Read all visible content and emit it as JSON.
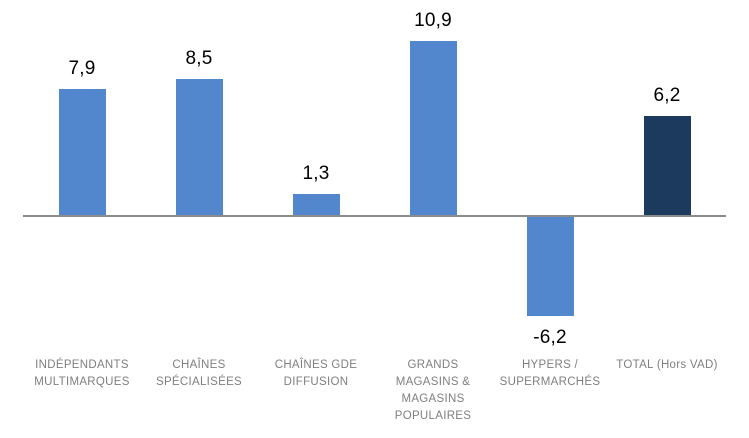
{
  "chart_data": {
    "type": "bar",
    "title": "",
    "xlabel": "",
    "ylabel": "",
    "categories": [
      "INDÉPENDANTS MULTIMARQUES",
      "CHAÎNES SPÉCIALISÉES",
      "CHAÎNES GDE DIFFUSION",
      "GRANDS MAGASINS & MAGASINS POPULAIRES",
      "HYPERS / SUPERMARCHÉS",
      "TOTAL (Hors VAD)"
    ],
    "category_lines": [
      [
        "INDÉPENDANTS",
        "MULTIMARQUES"
      ],
      [
        "CHAÎNES",
        "SPÉCIALISÉES"
      ],
      [
        "CHAÎNES GDE",
        "DIFFUSION"
      ],
      [
        "GRANDS",
        "MAGASINS &",
        "MAGASINS",
        "POPULAIRES"
      ],
      [
        "HYPERS /",
        "SUPERMARCHÉS"
      ],
      [
        "TOTAL (Hors VAD)"
      ]
    ],
    "values": [
      7.9,
      8.5,
      1.3,
      10.9,
      -6.2,
      6.2
    ],
    "value_labels": [
      "7,9",
      "8,5",
      "1,3",
      "10,9",
      "-6,2",
      "6,2"
    ],
    "bar_colors": [
      "#5287CE",
      "#5287CE",
      "#5287CE",
      "#5287CE",
      "#5287CE",
      "#1C3A5E"
    ],
    "colors": {
      "bar_default": "#5287CE",
      "bar_total": "#1C3A5E",
      "axis_line": "#8C8C8C",
      "value_label": "#000000",
      "category_label": "#7F7F7F",
      "background": "#FFFFFF"
    },
    "ylim": [
      -8,
      12
    ],
    "grid": false,
    "legend": false,
    "value_labels_shown": true,
    "baseline": 0
  }
}
